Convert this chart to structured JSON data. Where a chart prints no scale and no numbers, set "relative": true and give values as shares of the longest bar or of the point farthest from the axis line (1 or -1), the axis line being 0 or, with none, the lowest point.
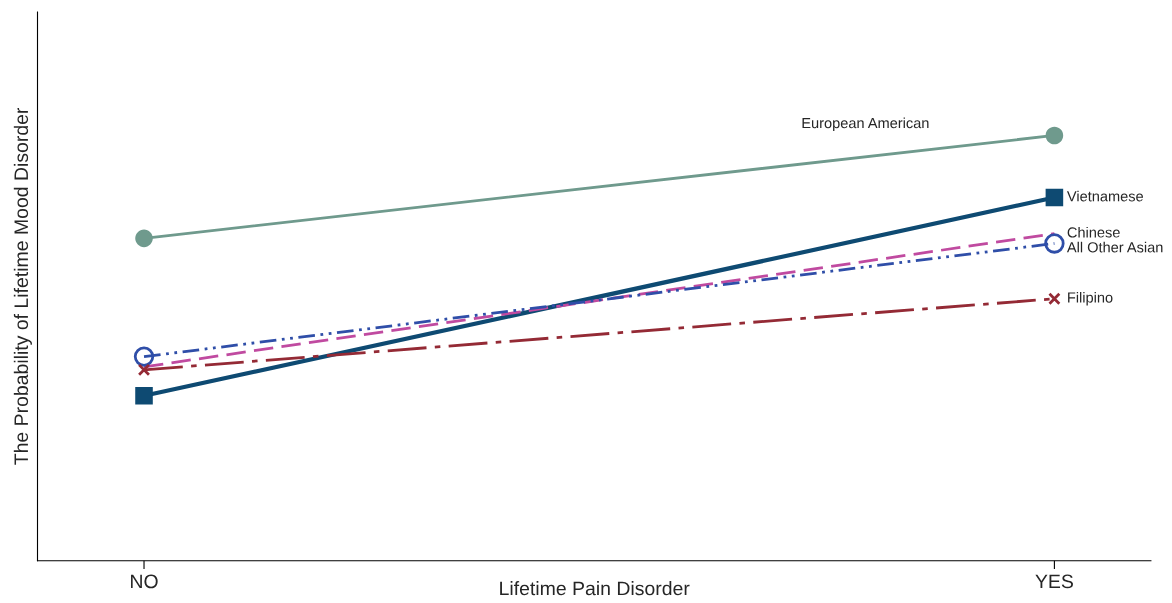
{
  "chart_data": {
    "type": "line",
    "relative": true,
    "xlabel": "Lifetime Pain Disorder",
    "ylabel": "The Probability of Lifetime Mood Disorder",
    "categories": [
      "NO",
      "YES"
    ],
    "legend": false,
    "grid": false,
    "series": [
      {
        "name": "European American",
        "color": "#6f9a8d",
        "values": [
          0.758,
          1
        ],
        "marker": "circle",
        "line_style": "solid"
      },
      {
        "name": "Vietnamese",
        "color": "#0e4a72",
        "values": [
          0.388,
          0.854
        ],
        "marker": "square",
        "line_style": "solid"
      },
      {
        "name": "Chinese",
        "color": "#c04aa0",
        "values": [
          0.456,
          0.769
        ],
        "marker": "none",
        "line_style": "dashed"
      },
      {
        "name": "All Other Asian",
        "color": "#2f4ea8",
        "values": [
          0.48,
          0.746
        ],
        "marker": "circle",
        "line_style": "dotted"
      },
      {
        "name": "Filipino",
        "color": "#942a35",
        "values": [
          0.449,
          0.616
        ],
        "marker": "cross",
        "line_style": "dashed"
      }
    ]
  }
}
